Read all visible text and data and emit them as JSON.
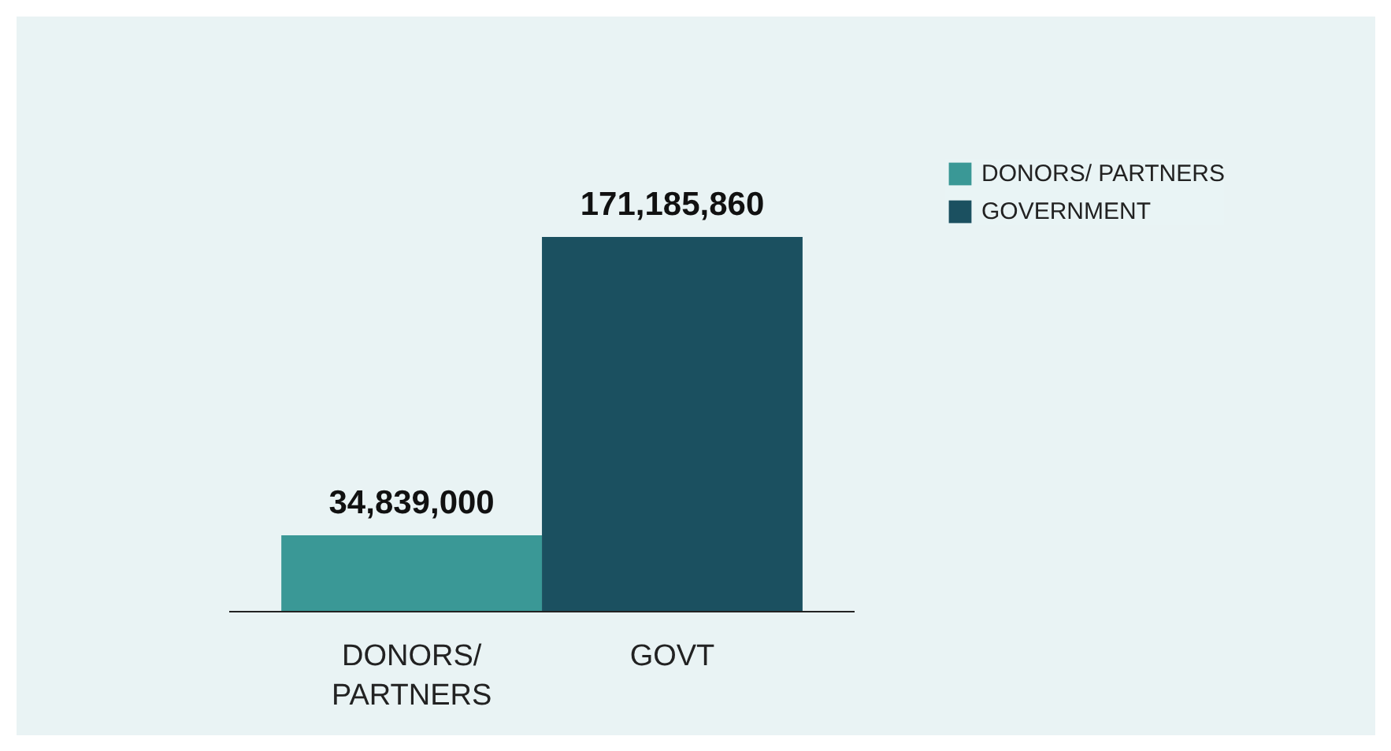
{
  "chart_data": {
    "type": "bar",
    "categories": [
      "DONORS/ PARTNERS",
      "GOVT"
    ],
    "series": [
      {
        "name": "DONORS/ PARTNERS",
        "color": "#3a9896",
        "values": [
          34839000,
          null
        ],
        "value_labels": [
          "34,839,000",
          null
        ]
      },
      {
        "name": "GOVERNMENT",
        "color": "#1b5060",
        "values": [
          null,
          171185860
        ],
        "value_labels": [
          null,
          "171,185,860"
        ]
      }
    ],
    "legend": "top right",
    "grid": false
  }
}
